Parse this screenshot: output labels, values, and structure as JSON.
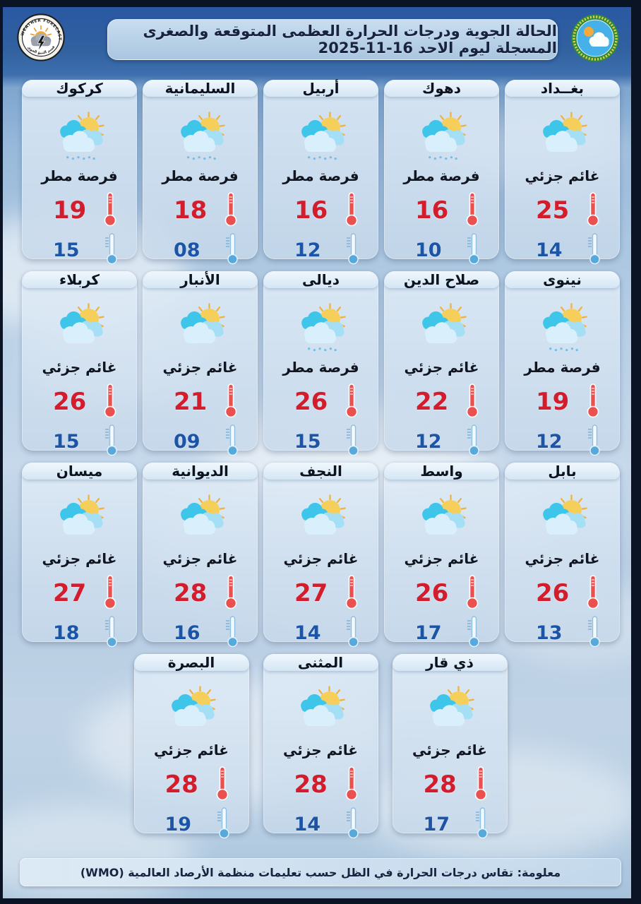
{
  "header": {
    "title": "الحالة الجوية ودرجات الحرارة العظمى المتوقعة والصغرى المسجلة ليوم الاحد 16-11-2025",
    "left_logo_ring_text": "WEATHER FORECASTING DEPT.",
    "left_logo_banner_text": "قسم التنبؤ الجوي"
  },
  "conditions": {
    "partly_cloudy": "غائم جزئي",
    "rain_chance": "فرصة مطر"
  },
  "colors": {
    "max_temp": "#d31d2c",
    "min_temp": "#1d55a6",
    "header_blue": "#2e5ea9",
    "card_bg": "#d7e4f2"
  },
  "rows": [
    {
      "cards": [
        {
          "name": "بغــداد",
          "condition": "غائم جزئي",
          "max": "25",
          "min": "14",
          "rain": false
        },
        {
          "name": "دهوك",
          "condition": "فرصة مطر",
          "max": "16",
          "min": "10",
          "rain": true
        },
        {
          "name": "أربيل",
          "condition": "فرصة مطر",
          "max": "16",
          "min": "12",
          "rain": true
        },
        {
          "name": "السليمانية",
          "condition": "فرصة مطر",
          "max": "18",
          "min": "08",
          "rain": true
        },
        {
          "name": "كركوك",
          "condition": "فرصة مطر",
          "max": "19",
          "min": "15",
          "rain": true
        }
      ]
    },
    {
      "cards": [
        {
          "name": "نينوى",
          "condition": "فرصة مطر",
          "max": "19",
          "min": "12",
          "rain": true
        },
        {
          "name": "صلاح الدين",
          "condition": "غائم جزئي",
          "max": "22",
          "min": "12",
          "rain": false
        },
        {
          "name": "ديالى",
          "condition": "فرصة مطر",
          "max": "26",
          "min": "15",
          "rain": true
        },
        {
          "name": "الأنبار",
          "condition": "غائم جزئي",
          "max": "21",
          "min": "09",
          "rain": false
        },
        {
          "name": "كربلاء",
          "condition": "غائم جزئي",
          "max": "26",
          "min": "15",
          "rain": false
        }
      ]
    },
    {
      "cards": [
        {
          "name": "بابل",
          "condition": "غائم جزئي",
          "max": "26",
          "min": "13",
          "rain": false
        },
        {
          "name": "واسط",
          "condition": "غائم جزئي",
          "max": "26",
          "min": "17",
          "rain": false
        },
        {
          "name": "النجف",
          "condition": "غائم جزئي",
          "max": "27",
          "min": "14",
          "rain": false
        },
        {
          "name": "الديوانية",
          "condition": "غائم جزئي",
          "max": "28",
          "min": "16",
          "rain": false
        },
        {
          "name": "ميسان",
          "condition": "غائم جزئي",
          "max": "27",
          "min": "18",
          "rain": false
        }
      ]
    },
    {
      "cards": [
        {
          "name": "ذي قار",
          "condition": "غائم جزئي",
          "max": "28",
          "min": "17",
          "rain": false
        },
        {
          "name": "المثنى",
          "condition": "غائم جزئي",
          "max": "28",
          "min": "14",
          "rain": false
        },
        {
          "name": "البصرة",
          "condition": "غائم جزئي",
          "max": "28",
          "min": "19",
          "rain": false
        }
      ]
    }
  ],
  "footer": {
    "note": "معلومة: تقاس درجات الحرارة في الظل حسب تعليمات منظمة الأرصاد العالمية (WMO)"
  }
}
